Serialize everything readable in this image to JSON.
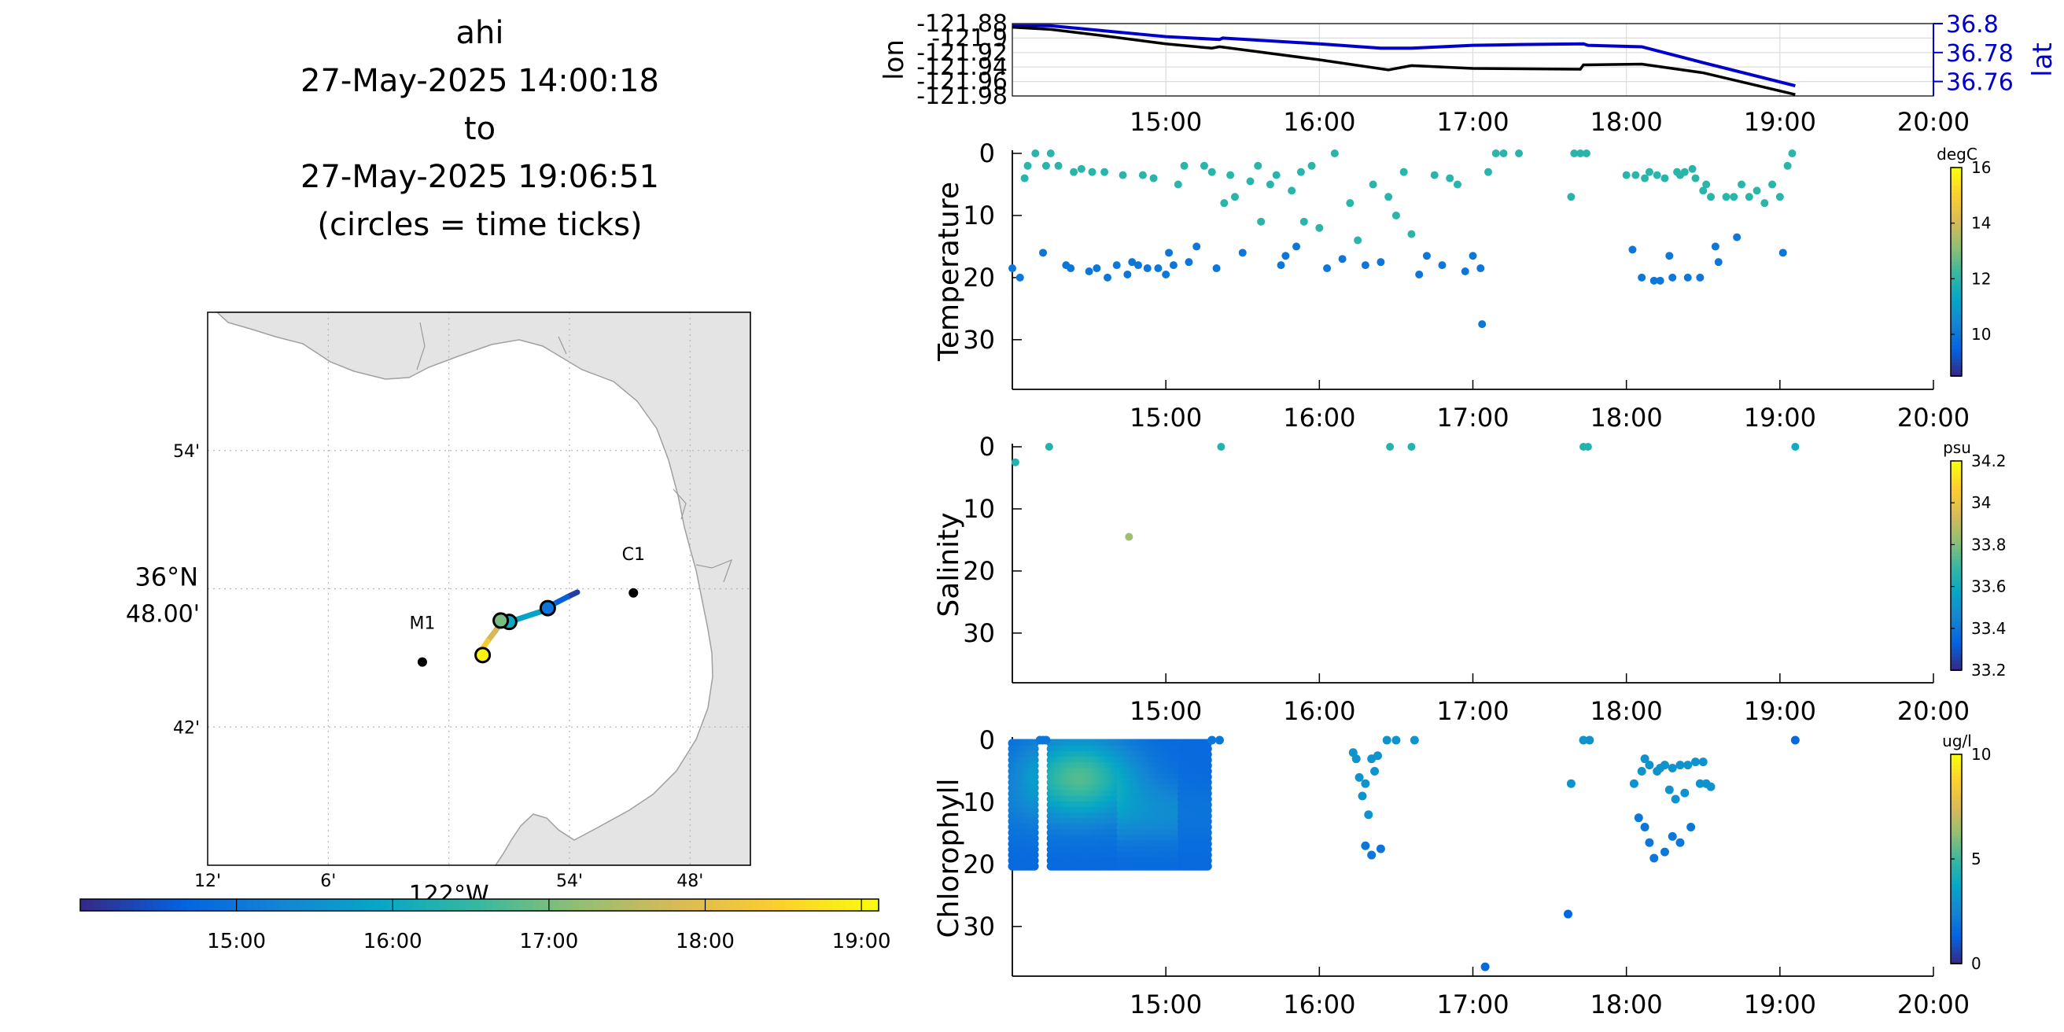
{
  "title": {
    "lines": [
      "ahi",
      "27-May-2025 14:00:18",
      "to",
      "27-May-2025 19:06:51",
      "(circles = time ticks)"
    ]
  },
  "colors": {
    "land": "#e4e4e4",
    "coast": "#9a9a9a",
    "lat_axis": "#0000cc",
    "lon_line": "#000000",
    "grid": "#d9d9d9",
    "parula": [
      "#352a87",
      "#0363e1",
      "#1485d4",
      "#06a7c6",
      "#38b99e",
      "#92bf73",
      "#d9ba56",
      "#fcce2e",
      "#f9fb0e"
    ]
  },
  "map": {
    "x_ticks": [
      {
        "lon": -122.2,
        "label": "12'"
      },
      {
        "lon": -122.1,
        "label": "6'"
      },
      {
        "lon": -121.9,
        "label": "54'"
      },
      {
        "lon": -121.8,
        "label": "48'"
      }
    ],
    "x_center_label": "122°W",
    "y_ticks": [
      {
        "lat": 36.9,
        "label": "54'"
      },
      {
        "lat": 36.7,
        "label": "42'"
      }
    ],
    "y_center_label": "36°N",
    "y_center_sub": "48.00'",
    "lon_range": [
      -122.2,
      -121.75
    ],
    "lat_range": [
      36.6,
      37.0
    ],
    "stations": [
      {
        "name": "M1",
        "lon": -122.022,
        "lat": 36.747
      },
      {
        "name": "C1",
        "lon": -121.847,
        "lat": 36.797
      }
    ],
    "track": [
      {
        "lon": -121.8935,
        "lat": 36.7975,
        "t": 14.0
      },
      {
        "lon": -121.902,
        "lat": 36.794,
        "t": 14.4
      },
      {
        "lon": -121.913,
        "lat": 36.789,
        "t": 14.8
      },
      {
        "lon": -121.922,
        "lat": 36.784,
        "t": 15.3
      },
      {
        "lon": -121.95,
        "lat": 36.776,
        "t": 16.4
      },
      {
        "lon": -121.958,
        "lat": 36.774,
        "t": 16.9
      },
      {
        "lon": -121.961,
        "lat": 36.77,
        "t": 17.5
      },
      {
        "lon": -121.968,
        "lat": 36.762,
        "t": 18.1
      },
      {
        "lon": -121.975,
        "lat": 36.753,
        "t": 18.7
      },
      {
        "lon": -121.972,
        "lat": 36.756,
        "t": 19.1
      }
    ],
    "time_ticks": [
      {
        "lon": -121.918,
        "lat": 36.786,
        "t": 15.0
      },
      {
        "lon": -121.95,
        "lat": 36.776,
        "t": 16.0
      },
      {
        "lon": -121.957,
        "lat": 36.777,
        "t": 17.0
      },
      {
        "lon": -121.972,
        "lat": 36.752,
        "t": 19.0
      }
    ]
  },
  "colorbar": {
    "tick_labels": [
      "15:00",
      "16:00",
      "17:00",
      "18:00",
      "19:00"
    ],
    "ticks": [
      15,
      16,
      17,
      18,
      19
    ],
    "range": [
      14.0,
      19.11
    ]
  },
  "chart_data": [
    {
      "type": "line",
      "title": "",
      "x_ticks": [
        15,
        16,
        17,
        18,
        19,
        20
      ],
      "x_tick_labels": [
        "15:00",
        "16:00",
        "17:00",
        "18:00",
        "19:00",
        "20:00"
      ],
      "xlim": [
        14.0,
        20.0
      ],
      "ylabel_left": "lon",
      "ylabel_right": "lat",
      "ylim_left": [
        -121.98,
        -121.88
      ],
      "yticks_left": [
        "-121.88",
        "-121.9",
        "-121.92",
        "-121.94",
        "-121.96",
        "-121.98"
      ],
      "ylim_right": [
        36.75,
        36.8
      ],
      "yticks_right": [
        "36.8",
        "36.78",
        "36.76"
      ],
      "series": [
        {
          "name": "lon",
          "x": [
            14.0,
            14.25,
            14.6,
            15.0,
            15.3,
            15.35,
            16.0,
            16.45,
            16.6,
            17.0,
            17.7,
            17.72,
            18.1,
            18.5,
            19.1
          ],
          "y": [
            -121.885,
            -121.888,
            -121.897,
            -121.908,
            -121.914,
            -121.912,
            -121.93,
            -121.944,
            -121.938,
            -121.942,
            -121.943,
            -121.937,
            -121.936,
            -121.948,
            -121.978
          ]
        },
        {
          "name": "lat",
          "x": [
            14.0,
            14.25,
            14.6,
            15.0,
            15.35,
            15.37,
            16.0,
            16.4,
            16.6,
            17.0,
            17.3,
            17.72,
            17.75,
            18.1,
            18.5,
            19.1
          ],
          "y": [
            36.7985,
            36.7985,
            36.795,
            36.791,
            36.789,
            36.79,
            36.786,
            36.783,
            36.783,
            36.785,
            36.7855,
            36.786,
            36.785,
            36.784,
            36.773,
            36.757
          ]
        }
      ]
    },
    {
      "type": "scatter",
      "name": "temperature",
      "ylabel": "Temperature",
      "ylim": [
        38,
        0
      ],
      "yticks": [
        0,
        10,
        20,
        30
      ],
      "xlim": [
        14.0,
        20.0
      ],
      "x_tick_labels": [
        "15:00",
        "16:00",
        "17:00",
        "18:00",
        "19:00",
        "20:00"
      ],
      "x_ticks": [
        15,
        16,
        17,
        18,
        19,
        20
      ],
      "colorbar_label": "degC",
      "clim": [
        8.5,
        16
      ],
      "colorbar_ticks": [
        10,
        12,
        14,
        16
      ],
      "points": [
        [
          14.0,
          18.5,
          10
        ],
        [
          14.05,
          20,
          10
        ],
        [
          14.08,
          4,
          12
        ],
        [
          14.1,
          2,
          12
        ],
        [
          14.15,
          0,
          12
        ],
        [
          14.2,
          16,
          10
        ],
        [
          14.22,
          2,
          12
        ],
        [
          14.25,
          0,
          12
        ],
        [
          14.3,
          2,
          12
        ],
        [
          14.35,
          18,
          10
        ],
        [
          14.38,
          18.5,
          10
        ],
        [
          14.4,
          3,
          12
        ],
        [
          14.45,
          2.5,
          12
        ],
        [
          14.5,
          19,
          10
        ],
        [
          14.52,
          3,
          12
        ],
        [
          14.55,
          18.5,
          10
        ],
        [
          14.6,
          3,
          12
        ],
        [
          14.62,
          20,
          10
        ],
        [
          14.68,
          18,
          10
        ],
        [
          14.72,
          3.5,
          12
        ],
        [
          14.75,
          19.5,
          10
        ],
        [
          14.78,
          17.5,
          10
        ],
        [
          14.82,
          18,
          10
        ],
        [
          14.85,
          3.5,
          12
        ],
        [
          14.88,
          18.5,
          10
        ],
        [
          14.92,
          4,
          12
        ],
        [
          14.95,
          18.5,
          10
        ],
        [
          15.0,
          19.5,
          10
        ],
        [
          15.02,
          16,
          10
        ],
        [
          15.05,
          18,
          10
        ],
        [
          15.08,
          5,
          12
        ],
        [
          15.12,
          2,
          12
        ],
        [
          15.15,
          17.5,
          10
        ],
        [
          15.2,
          15,
          10
        ],
        [
          15.25,
          2,
          12
        ],
        [
          15.3,
          3,
          12
        ],
        [
          15.33,
          18.5,
          10
        ],
        [
          15.38,
          8,
          12
        ],
        [
          15.42,
          3.5,
          12
        ],
        [
          15.45,
          7,
          12
        ],
        [
          15.5,
          16,
          10
        ],
        [
          15.55,
          4.5,
          12
        ],
        [
          15.6,
          2,
          12
        ],
        [
          15.62,
          11,
          12
        ],
        [
          15.68,
          5,
          12
        ],
        [
          15.72,
          3.5,
          12
        ],
        [
          15.75,
          18,
          10
        ],
        [
          15.78,
          16.5,
          10
        ],
        [
          15.82,
          6,
          12
        ],
        [
          15.85,
          15,
          10
        ],
        [
          15.88,
          3,
          12
        ],
        [
          15.9,
          11,
          12
        ],
        [
          15.95,
          2,
          12
        ],
        [
          16.0,
          12,
          12
        ],
        [
          16.05,
          18.5,
          10
        ],
        [
          16.1,
          0,
          12
        ],
        [
          16.15,
          17,
          10
        ],
        [
          16.2,
          8,
          12
        ],
        [
          16.25,
          14,
          12
        ],
        [
          16.3,
          18,
          10
        ],
        [
          16.35,
          5,
          12
        ],
        [
          16.4,
          17.5,
          10
        ],
        [
          16.45,
          7,
          12
        ],
        [
          16.5,
          10,
          12
        ],
        [
          16.55,
          3,
          12
        ],
        [
          16.6,
          13,
          12
        ],
        [
          16.65,
          19.5,
          10
        ],
        [
          16.7,
          16.5,
          10
        ],
        [
          16.75,
          3.5,
          12
        ],
        [
          16.8,
          18,
          10
        ],
        [
          16.85,
          4,
          12
        ],
        [
          16.9,
          5,
          12
        ],
        [
          16.95,
          19,
          10
        ],
        [
          17.0,
          16.5,
          10
        ],
        [
          17.05,
          18.5,
          10
        ],
        [
          17.1,
          3,
          12
        ],
        [
          17.15,
          0,
          12
        ],
        [
          17.2,
          0,
          12
        ],
        [
          17.3,
          0,
          12
        ],
        [
          17.06,
          27.5,
          10
        ],
        [
          17.64,
          7,
          12
        ],
        [
          17.66,
          0,
          12
        ],
        [
          17.7,
          0,
          12
        ],
        [
          17.74,
          0,
          12
        ],
        [
          18.0,
          3.5,
          12
        ],
        [
          18.04,
          15.5,
          10
        ],
        [
          18.06,
          3.5,
          12
        ],
        [
          18.1,
          20,
          10
        ],
        [
          18.12,
          4,
          12
        ],
        [
          18.15,
          3,
          12
        ],
        [
          18.18,
          20.5,
          10
        ],
        [
          18.2,
          3.5,
          12
        ],
        [
          18.22,
          20.5,
          10
        ],
        [
          18.25,
          4,
          12
        ],
        [
          18.28,
          16.5,
          10
        ],
        [
          18.3,
          20,
          10
        ],
        [
          18.33,
          3,
          12
        ],
        [
          18.35,
          3.5,
          12
        ],
        [
          18.38,
          3,
          12
        ],
        [
          18.4,
          20,
          10
        ],
        [
          18.43,
          2.5,
          12
        ],
        [
          18.45,
          4,
          12
        ],
        [
          18.48,
          20,
          10
        ],
        [
          18.5,
          6,
          12
        ],
        [
          18.52,
          5,
          12
        ],
        [
          18.55,
          7,
          12
        ],
        [
          18.58,
          15,
          10
        ],
        [
          18.6,
          17.5,
          10
        ],
        [
          18.65,
          7,
          12
        ],
        [
          18.7,
          7,
          12
        ],
        [
          18.72,
          13.5,
          10
        ],
        [
          18.75,
          5,
          12
        ],
        [
          18.8,
          7,
          12
        ],
        [
          18.85,
          6,
          12
        ],
        [
          18.9,
          8,
          12
        ],
        [
          18.95,
          5,
          12
        ],
        [
          19.0,
          7,
          12
        ],
        [
          19.02,
          16,
          10
        ],
        [
          19.05,
          2,
          12
        ],
        [
          19.08,
          0,
          12
        ]
      ]
    },
    {
      "type": "scatter",
      "name": "salinity",
      "ylabel": "Salinity",
      "ylim": [
        38,
        0
      ],
      "yticks": [
        0,
        10,
        20,
        30
      ],
      "xlim": [
        14.0,
        20.0
      ],
      "x_tick_labels": [
        "15:00",
        "16:00",
        "17:00",
        "18:00",
        "19:00",
        "20:00"
      ],
      "x_ticks": [
        15,
        16,
        17,
        18,
        19,
        20
      ],
      "colorbar_label": "psu",
      "clim": [
        33.2,
        34.2
      ],
      "colorbar_ticks": [
        33.2,
        33.4,
        33.6,
        33.8,
        34.0,
        34.2
      ],
      "colorbar_tick_labels": [
        "33.2",
        "33.4",
        "33.6",
        "33.8",
        "34",
        "34.2"
      ],
      "points": [
        [
          14.02,
          2.5,
          33.65
        ],
        [
          14.24,
          0,
          33.65
        ],
        [
          14.76,
          14.5,
          33.85
        ],
        [
          15.36,
          0,
          33.65
        ],
        [
          16.46,
          0,
          33.65
        ],
        [
          16.6,
          0,
          33.65
        ],
        [
          17.72,
          0,
          33.65
        ],
        [
          17.75,
          0,
          33.65
        ],
        [
          19.1,
          0,
          33.6
        ]
      ]
    },
    {
      "type": "scatter",
      "name": "chlorophyll",
      "ylabel": "Chlorophyll",
      "ylim": [
        38,
        0
      ],
      "yticks": [
        0,
        10,
        20,
        30
      ],
      "xlim": [
        14.0,
        20.0
      ],
      "x_tick_labels": [
        "15:00",
        "16:00",
        "17:00",
        "18:00",
        "19:00",
        "20:00"
      ],
      "x_ticks": [
        15,
        16,
        17,
        18,
        19,
        20
      ],
      "colorbar_label": "ug/l",
      "clim": [
        0,
        10
      ],
      "colorbar_ticks": [
        0,
        5,
        10
      ],
      "profile_block": {
        "x_start": 14.0,
        "x_end": 15.28,
        "depth_top": 0.5,
        "depth_bottom": 20.5,
        "gap": [
          14.15,
          14.25
        ],
        "surface_peak_x": 14.45
      },
      "points": [
        [
          14.18,
          0,
          2
        ],
        [
          14.2,
          0,
          2
        ],
        [
          14.22,
          0,
          2
        ],
        [
          15.3,
          0,
          2
        ],
        [
          15.35,
          0,
          2
        ],
        [
          16.22,
          2,
          3
        ],
        [
          16.24,
          3,
          3
        ],
        [
          16.26,
          6,
          3
        ],
        [
          16.28,
          9,
          3
        ],
        [
          16.3,
          7,
          3
        ],
        [
          16.32,
          12,
          3
        ],
        [
          16.34,
          3,
          3
        ],
        [
          16.36,
          5,
          3
        ],
        [
          16.38,
          2.5,
          3
        ],
        [
          16.3,
          17,
          2
        ],
        [
          16.34,
          18.5,
          2
        ],
        [
          16.4,
          17.5,
          2
        ],
        [
          16.44,
          0,
          3
        ],
        [
          16.5,
          0,
          3
        ],
        [
          16.62,
          0,
          3
        ],
        [
          17.64,
          7,
          3
        ],
        [
          17.62,
          28,
          1.5
        ],
        [
          17.72,
          0,
          3
        ],
        [
          17.76,
          0,
          3
        ],
        [
          17.08,
          36.5,
          1.5
        ],
        [
          18.05,
          7,
          3
        ],
        [
          18.1,
          5,
          3
        ],
        [
          18.12,
          3,
          3
        ],
        [
          18.15,
          4,
          3
        ],
        [
          18.2,
          5,
          3
        ],
        [
          18.22,
          4.5,
          3
        ],
        [
          18.25,
          4,
          3
        ],
        [
          18.3,
          4.5,
          3
        ],
        [
          18.35,
          4,
          3
        ],
        [
          18.4,
          4,
          3
        ],
        [
          18.45,
          3.5,
          3
        ],
        [
          18.5,
          3.5,
          3
        ],
        [
          18.52,
          7,
          3
        ],
        [
          18.55,
          7.5,
          3
        ],
        [
          18.08,
          12.5,
          2
        ],
        [
          18.12,
          14,
          2
        ],
        [
          18.15,
          16.5,
          2
        ],
        [
          18.18,
          19,
          2
        ],
        [
          18.25,
          18,
          2
        ],
        [
          18.3,
          15.5,
          2
        ],
        [
          18.35,
          16.5,
          2
        ],
        [
          18.42,
          14,
          2
        ],
        [
          18.28,
          8,
          3
        ],
        [
          18.32,
          9.5,
          3
        ],
        [
          18.38,
          8.5,
          3
        ],
        [
          18.48,
          7,
          3
        ],
        [
          19.1,
          0,
          1.5
        ]
      ]
    }
  ]
}
